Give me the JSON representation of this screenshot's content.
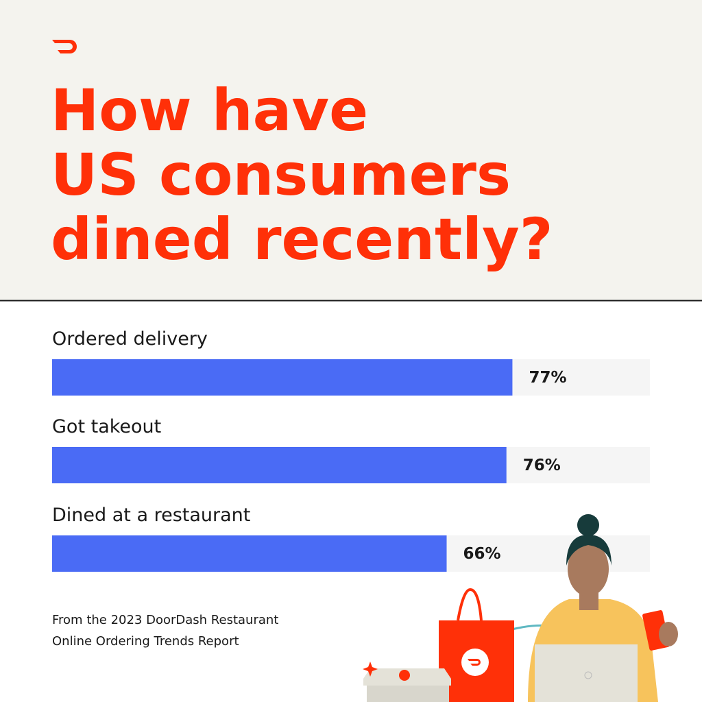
{
  "chart_data": {
    "type": "bar",
    "orientation": "horizontal",
    "title": [
      "How have",
      "US consumers",
      "dined recently?"
    ],
    "categories": [
      "Ordered delivery",
      "Got takeout",
      "Dined at a restaurant"
    ],
    "values": [
      77,
      76,
      66
    ],
    "value_labels": [
      "77%",
      "76%",
      "66%"
    ],
    "color": "#4a6bf5",
    "xlim": [
      0,
      100
    ],
    "source": [
      "From the 2023 DoorDash Restaurant",
      "Online Ordering Trends Report"
    ]
  }
}
